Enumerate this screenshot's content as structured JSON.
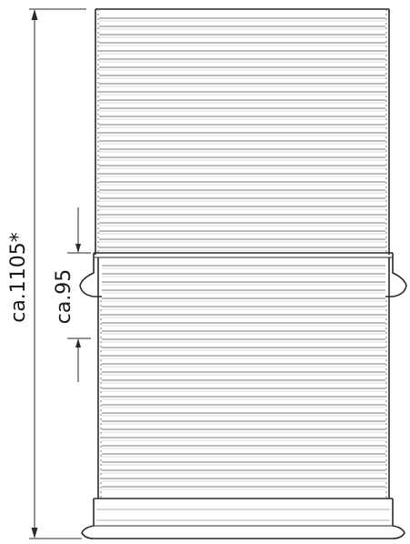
{
  "drawing": {
    "line_color": "#2a2a2a",
    "rib_color": "#7a7a7a",
    "dimension_total": "ca.1105*",
    "dimension_step": "ca.95"
  }
}
